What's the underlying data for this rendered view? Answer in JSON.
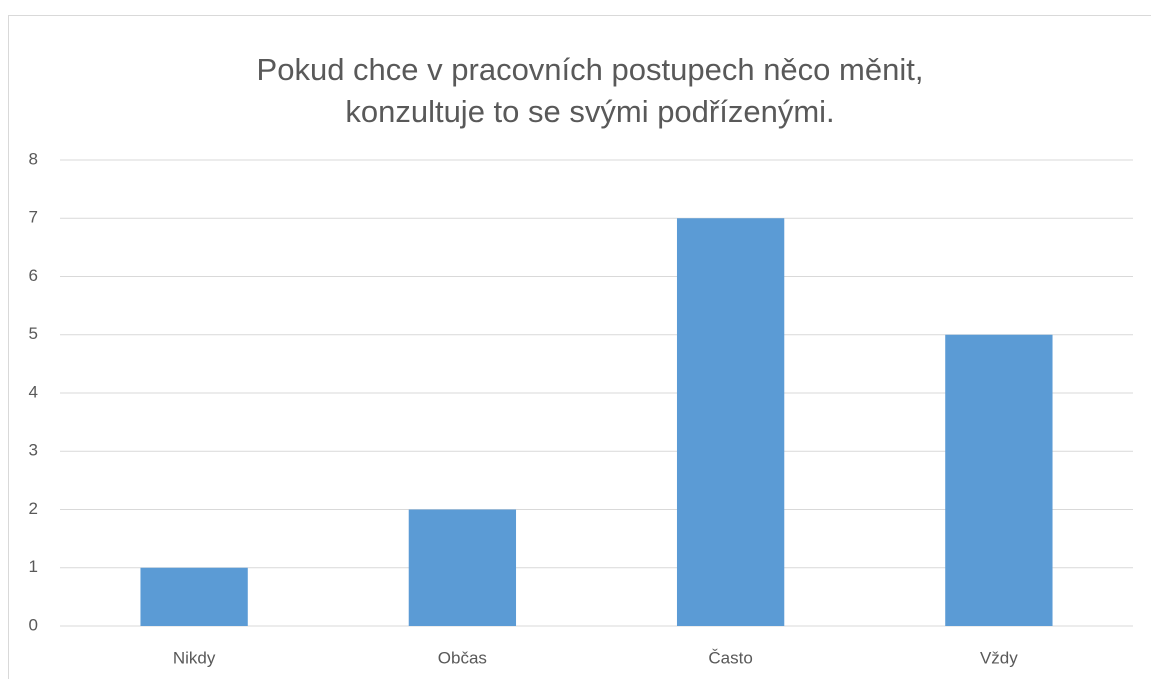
{
  "chart_data": {
    "type": "bar",
    "title": "Pokud chce v pracovních postupech něco měnit, konzultuje to se svými podřízenými.",
    "categories": [
      "Nikdy",
      "Občas",
      "Často",
      "Vždy"
    ],
    "values": [
      1,
      2,
      7,
      5
    ],
    "color": "#5b9bd5",
    "ylim": [
      0,
      8
    ],
    "yticks": [
      0,
      1,
      2,
      3,
      4,
      5,
      6,
      7,
      8
    ],
    "grid": true
  }
}
